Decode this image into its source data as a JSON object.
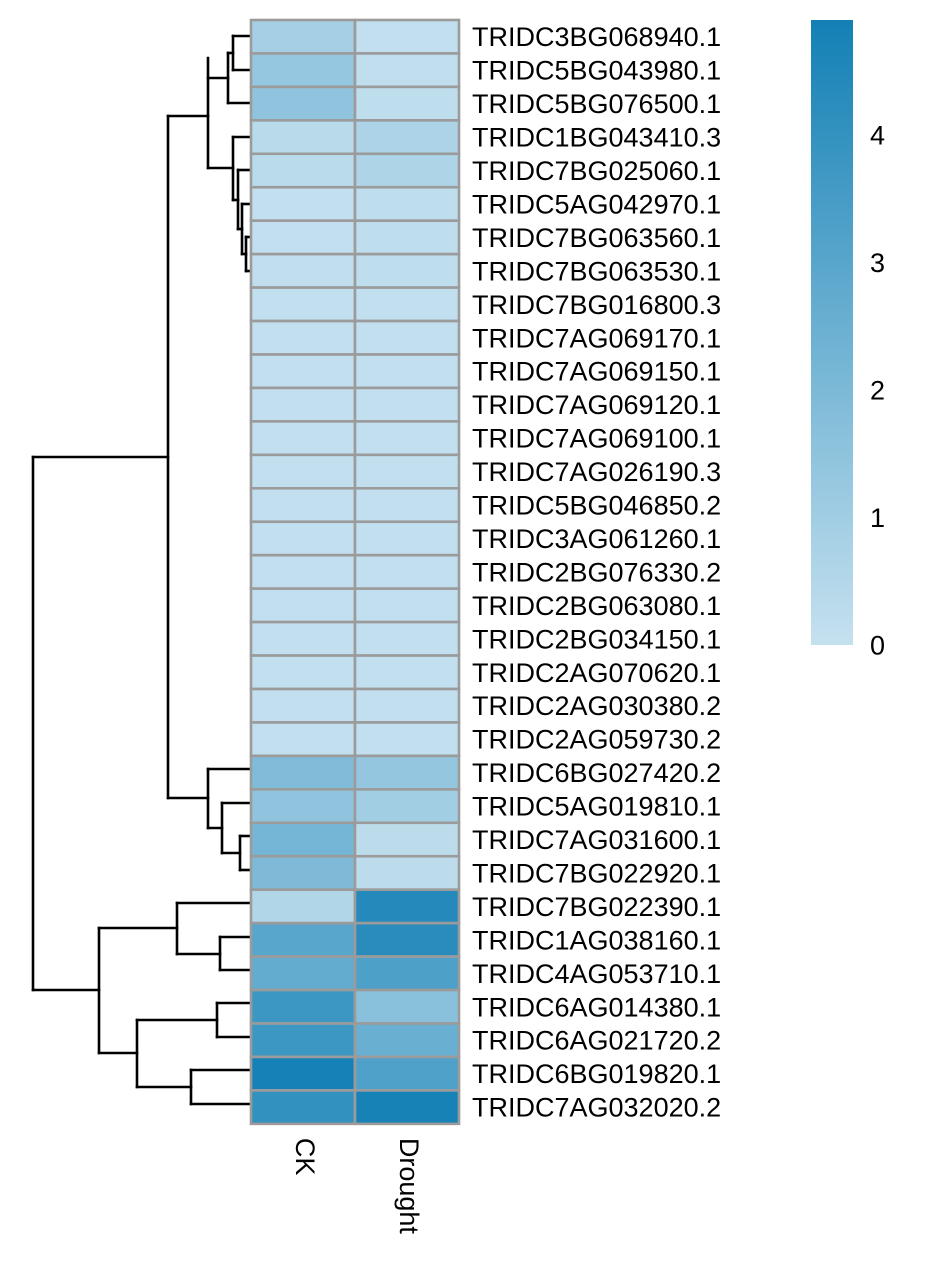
{
  "chart_data": {
    "type": "heatmap",
    "title": "",
    "columns": [
      "CK",
      "Drought"
    ],
    "rows": [
      "TRIDC3BG068940.1",
      "TRIDC5BG043980.1",
      "TRIDC5BG076500.1",
      "TRIDC1BG043410.3",
      "TRIDC7BG025060.1",
      "TRIDC5AG042970.1",
      "TRIDC7BG063560.1",
      "TRIDC7BG063530.1",
      "TRIDC7BG016800.3",
      "TRIDC7AG069170.1",
      "TRIDC7AG069150.1",
      "TRIDC7AG069120.1",
      "TRIDC7AG069100.1",
      "TRIDC7AG026190.3",
      "TRIDC5BG046850.2",
      "TRIDC3AG061260.1",
      "TRIDC2BG076330.2",
      "TRIDC2BG063080.1",
      "TRIDC2BG034150.1",
      "TRIDC2AG070620.1",
      "TRIDC2AG030380.2",
      "TRIDC2AG059730.2",
      "TRIDC6BG027420.2",
      "TRIDC5AG019810.1",
      "TRIDC7AG031600.1",
      "TRIDC7BG022920.1",
      "TRIDC7BG022390.1",
      "TRIDC1AG038160.1",
      "TRIDC4AG053710.1",
      "TRIDC6AG014380.1",
      "TRIDC6AG021720.2",
      "TRIDC6BG019820.1",
      "TRIDC7AG032020.2"
    ],
    "values": [
      [
        0.9,
        0.1
      ],
      [
        1.3,
        0.15
      ],
      [
        1.45,
        0.2
      ],
      [
        0.35,
        0.7
      ],
      [
        0.3,
        0.65
      ],
      [
        0.1,
        0.2
      ],
      [
        0.1,
        0.2
      ],
      [
        0.15,
        0.2
      ],
      [
        0.1,
        0.1
      ],
      [
        0.1,
        0.1
      ],
      [
        0.1,
        0.1
      ],
      [
        0.1,
        0.1
      ],
      [
        0.1,
        0.1
      ],
      [
        0.1,
        0.1
      ],
      [
        0.1,
        0.1
      ],
      [
        0.1,
        0.1
      ],
      [
        0.1,
        0.1
      ],
      [
        0.1,
        0.1
      ],
      [
        0.1,
        0.1
      ],
      [
        0.1,
        0.1
      ],
      [
        0.1,
        0.1
      ],
      [
        0.1,
        0.1
      ],
      [
        1.9,
        1.35
      ],
      [
        1.45,
        0.95
      ],
      [
        2.2,
        0.25
      ],
      [
        1.95,
        0.25
      ],
      [
        0.55,
        4.4
      ],
      [
        3.0,
        4.3
      ],
      [
        2.7,
        3.3
      ],
      [
        3.75,
        1.65
      ],
      [
        3.75,
        2.55
      ],
      [
        4.85,
        3.25
      ],
      [
        4.05,
        4.8
      ]
    ],
    "colorbar": {
      "min": 0,
      "max": 4.9,
      "ticks": [
        0,
        1,
        2,
        3,
        4
      ],
      "low_color": "#c5e1ef",
      "high_color": "#1380b5"
    },
    "row_dendrogram": true,
    "cell_border_color": "#9b9b9b"
  }
}
